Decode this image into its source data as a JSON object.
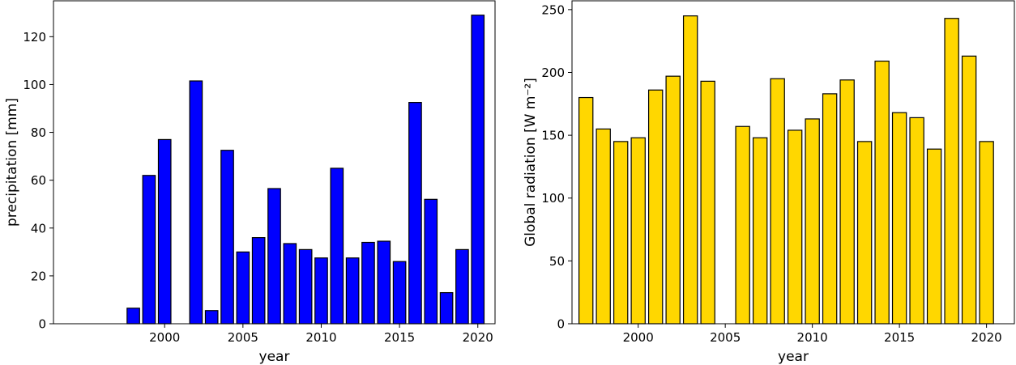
{
  "chart_data": [
    {
      "type": "bar",
      "x": [
        1997,
        1998,
        1999,
        2000,
        2001,
        2002,
        2003,
        2004,
        2005,
        2006,
        2007,
        2008,
        2009,
        2010,
        2011,
        2012,
        2013,
        2014,
        2015,
        2016,
        2017,
        2018,
        2019,
        2020
      ],
      "values": [
        0,
        6.5,
        62,
        77,
        0,
        101.5,
        5.5,
        72.5,
        30,
        36,
        56.5,
        33.5,
        31,
        27.5,
        65,
        27.5,
        34,
        34.5,
        26,
        92.5,
        52,
        13,
        31,
        129
      ],
      "title": "",
      "xlabel": "year",
      "ylabel": "precipitation [mm]",
      "xlim": [
        1992.9,
        2021.1
      ],
      "ylim": [
        0,
        135
      ],
      "xticks": [
        2000,
        2005,
        2010,
        2015,
        2020
      ],
      "yticks": [
        0,
        20,
        40,
        60,
        80,
        100,
        120
      ],
      "bar_color": "#0000ff",
      "edge_color": "#000000",
      "grid": false
    },
    {
      "type": "bar",
      "x": [
        1997,
        1998,
        1999,
        2000,
        2001,
        2002,
        2003,
        2004,
        2006,
        2007,
        2008,
        2009,
        2010,
        2011,
        2012,
        2013,
        2014,
        2015,
        2016,
        2017,
        2018,
        2019,
        2020
      ],
      "values": [
        180,
        155,
        145,
        148,
        186,
        197,
        245,
        193,
        157,
        148,
        195,
        154,
        163,
        183,
        194,
        145,
        209,
        168,
        164,
        139,
        243,
        213,
        145
      ],
      "title": "",
      "xlabel": "year",
      "ylabel": "Global radiation [W m⁻²]",
      "xlim": [
        1996.2,
        2021.6
      ],
      "ylim": [
        0,
        257
      ],
      "xticks": [
        2000,
        2005,
        2010,
        2015,
        2020
      ],
      "yticks": [
        0,
        50,
        100,
        150,
        200,
        250
      ],
      "bar_color": "#ffd700",
      "edge_color": "#000000",
      "grid": false
    }
  ]
}
